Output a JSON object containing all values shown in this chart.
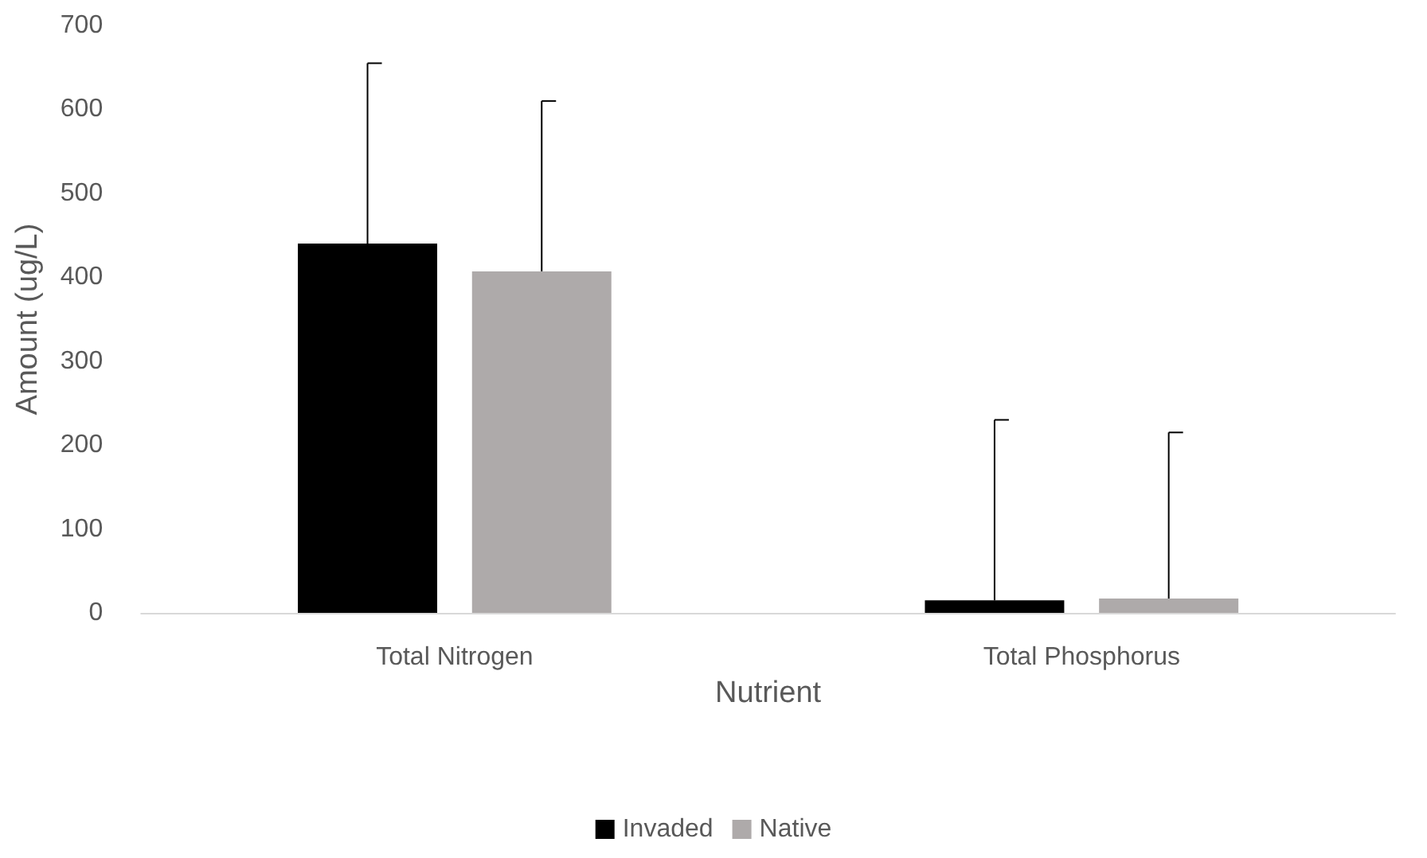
{
  "chart_data": {
    "type": "bar",
    "xlabel": "Nutrient",
    "ylabel": "Amount (ug/L)",
    "categories": [
      "Total Nitrogen",
      "Total Phosphorus"
    ],
    "series": [
      {
        "name": "Invaded",
        "color": "#000000",
        "values": [
          440,
          15
        ],
        "errors": [
          [
            440,
            655
          ],
          [
            15,
            230
          ]
        ]
      },
      {
        "name": "Native",
        "color": "#aeaaaa",
        "values": [
          407,
          17
        ],
        "errors": [
          [
            407,
            610
          ],
          [
            17,
            215
          ]
        ]
      }
    ],
    "ylim": [
      0,
      700
    ],
    "yticks": [
      0,
      100,
      200,
      300,
      400,
      500,
      600,
      700
    ],
    "grid": false,
    "legend": "bottom"
  }
}
